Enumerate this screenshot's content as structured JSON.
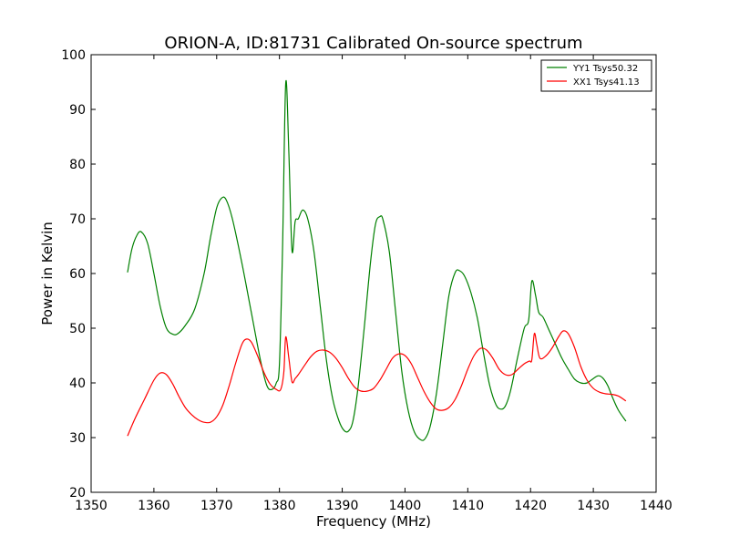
{
  "chart_data": {
    "type": "line",
    "title": "ORION-A, ID:81731 Calibrated On-source spectrum",
    "xlabel": "Frequency (MHz)",
    "ylabel": "Power in Kelvin",
    "xlim": [
      1350,
      1440
    ],
    "ylim": [
      20,
      100
    ],
    "xticks": [
      1350,
      1360,
      1370,
      1380,
      1390,
      1400,
      1410,
      1420,
      1430,
      1440
    ],
    "yticks": [
      20,
      30,
      40,
      50,
      60,
      70,
      80,
      90,
      100
    ],
    "xtick_labels": [
      "1350",
      "1360",
      "1370",
      "1380",
      "1390",
      "1400",
      "1410",
      "1420",
      "1430",
      "1440"
    ],
    "ytick_labels": [
      "20",
      "30",
      "40",
      "50",
      "60",
      "70",
      "80",
      "90",
      "100"
    ],
    "grid": false,
    "legend_position": "top-right",
    "series": [
      {
        "name": "YY1 Tsys50.32",
        "color": "#008000",
        "x": [
          1355.8,
          1356.5,
          1357.3,
          1358.0,
          1359.0,
          1360.0,
          1361.0,
          1362.0,
          1363.0,
          1363.8,
          1365.0,
          1366.5,
          1368.0,
          1369.0,
          1370.0,
          1370.8,
          1371.5,
          1372.5,
          1374.0,
          1375.5,
          1377.0,
          1378.0,
          1378.8,
          1379.5,
          1380.0,
          1380.5,
          1381.0,
          1381.5,
          1382.0,
          1382.5,
          1383.0,
          1383.7,
          1384.5,
          1385.5,
          1386.5,
          1387.5,
          1388.5,
          1389.5,
          1390.3,
          1391.0,
          1391.7,
          1392.5,
          1393.5,
          1394.5,
          1395.3,
          1396.0,
          1396.5,
          1397.5,
          1398.5,
          1399.5,
          1400.5,
          1401.5,
          1402.5,
          1403.2,
          1404.0,
          1405.0,
          1406.0,
          1407.0,
          1408.0,
          1408.7,
          1409.5,
          1410.5,
          1411.5,
          1412.5,
          1413.5,
          1414.5,
          1415.3,
          1416.0,
          1416.8,
          1418.0,
          1419.0,
          1419.7,
          1420.2,
          1420.8,
          1421.3,
          1422.0,
          1423.0,
          1424.0,
          1425.0,
          1426.0,
          1427.0,
          1428.0,
          1429.0,
          1430.0,
          1430.8,
          1431.5,
          1432.3,
          1433.0,
          1434.0,
          1435.2
        ],
        "y": [
          60.2,
          64.5,
          67.0,
          67.6,
          65.5,
          60.0,
          54.0,
          50.0,
          48.9,
          49.0,
          50.5,
          53.5,
          60.0,
          66.5,
          72.0,
          73.8,
          73.5,
          70.0,
          62.0,
          53.0,
          44.0,
          39.5,
          38.8,
          40.0,
          43.5,
          65.0,
          94.8,
          82.0,
          64.2,
          69.5,
          70.0,
          71.6,
          70.0,
          64.0,
          54.0,
          44.0,
          37.0,
          33.0,
          31.3,
          31.2,
          33.0,
          39.0,
          50.0,
          62.0,
          69.0,
          70.4,
          69.8,
          64.0,
          53.0,
          42.0,
          35.0,
          31.0,
          29.6,
          29.8,
          32.0,
          38.0,
          47.0,
          56.0,
          60.2,
          60.5,
          59.5,
          56.5,
          52.0,
          45.5,
          39.5,
          36.0,
          35.2,
          35.8,
          38.5,
          45.0,
          50.0,
          51.5,
          58.6,
          56.0,
          52.9,
          52.0,
          49.5,
          47.0,
          44.5,
          42.5,
          40.7,
          40.0,
          40.0,
          40.8,
          41.3,
          40.9,
          39.5,
          37.5,
          35.0,
          33.0
        ]
      },
      {
        "name": "XX1 Tsys41.13",
        "color": "#ff0000",
        "x": [
          1355.8,
          1357.0,
          1358.5,
          1360.0,
          1361.0,
          1362.0,
          1363.0,
          1364.0,
          1365.0,
          1366.0,
          1367.0,
          1368.0,
          1369.0,
          1370.0,
          1371.0,
          1372.0,
          1373.0,
          1374.0,
          1374.7,
          1375.5,
          1376.5,
          1377.5,
          1378.5,
          1379.5,
          1380.2,
          1380.7,
          1381.0,
          1381.5,
          1382.0,
          1382.5,
          1383.0,
          1384.0,
          1385.0,
          1386.0,
          1387.0,
          1388.0,
          1389.0,
          1390.0,
          1391.0,
          1392.0,
          1393.0,
          1394.0,
          1395.0,
          1396.0,
          1397.0,
          1398.0,
          1399.0,
          1400.0,
          1401.0,
          1402.0,
          1403.0,
          1404.0,
          1405.0,
          1406.0,
          1407.0,
          1408.0,
          1409.0,
          1410.0,
          1411.0,
          1412.0,
          1413.0,
          1414.0,
          1415.0,
          1416.0,
          1417.0,
          1418.0,
          1419.0,
          1419.8,
          1420.2,
          1420.6,
          1421.0,
          1421.5,
          1422.5,
          1423.5,
          1424.5,
          1425.2,
          1426.0,
          1427.0,
          1428.0,
          1429.0,
          1430.0,
          1431.0,
          1432.0,
          1433.0,
          1434.0,
          1435.2
        ],
        "y": [
          30.3,
          33.5,
          37.0,
          40.5,
          41.8,
          41.5,
          39.8,
          37.5,
          35.5,
          34.2,
          33.3,
          32.8,
          32.8,
          33.8,
          36.0,
          39.5,
          43.5,
          47.0,
          48.0,
          47.5,
          45.0,
          42.0,
          39.8,
          38.8,
          38.8,
          42.0,
          48.4,
          44.5,
          40.2,
          40.8,
          41.5,
          43.2,
          44.8,
          45.8,
          46.0,
          45.6,
          44.5,
          42.8,
          40.8,
          39.2,
          38.5,
          38.5,
          39.0,
          40.5,
          42.5,
          44.5,
          45.3,
          45.0,
          43.5,
          41.0,
          38.5,
          36.5,
          35.2,
          35.0,
          35.5,
          37.0,
          39.5,
          42.5,
          45.0,
          46.3,
          46.0,
          44.5,
          42.5,
          41.5,
          41.5,
          42.5,
          43.5,
          44.0,
          44.2,
          49.0,
          47.0,
          44.5,
          45.0,
          46.5,
          48.5,
          49.5,
          49.0,
          46.5,
          43.0,
          40.5,
          39.0,
          38.3,
          38.0,
          37.9,
          37.6,
          36.7
        ]
      }
    ]
  }
}
